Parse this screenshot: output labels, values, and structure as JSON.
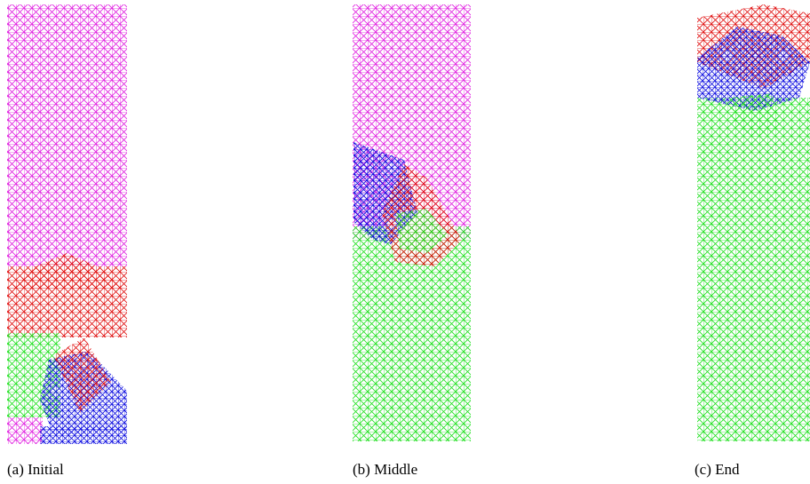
{
  "captions": [
    "(a) Initial",
    "(b) Middle",
    "(c) End"
  ]
}
